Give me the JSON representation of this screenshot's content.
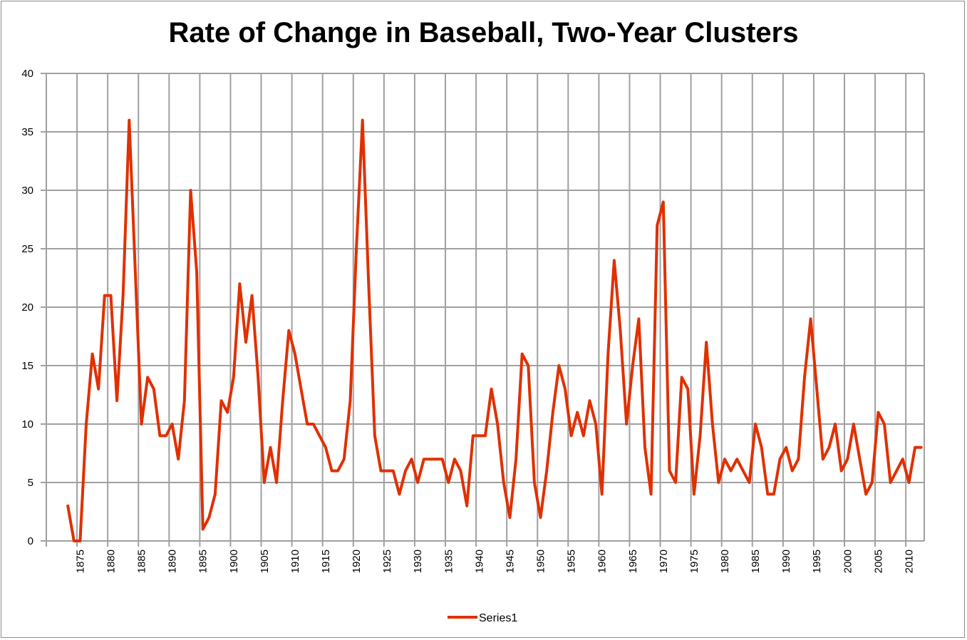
{
  "chart_data": {
    "type": "line",
    "title": "Rate of Change in Baseball, Two-Year Clusters",
    "xlabel": "",
    "ylabel": "",
    "ylim": [
      0,
      40
    ],
    "yticks": [
      0,
      5,
      10,
      15,
      20,
      25,
      30,
      35,
      40
    ],
    "xlim": [
      1870,
      2012
    ],
    "xticks": [
      1875,
      1880,
      1885,
      1890,
      1895,
      1900,
      1905,
      1910,
      1915,
      1920,
      1925,
      1930,
      1935,
      1940,
      1945,
      1950,
      1955,
      1960,
      1965,
      1970,
      1975,
      1980,
      1985,
      1990,
      1995,
      2000,
      2005,
      2010
    ],
    "grid": true,
    "legend_position": "bottom",
    "colors": {
      "series": "#e03000",
      "grid": "#a0a0a0"
    },
    "series": [
      {
        "name": "Series1",
        "x_start": 1873,
        "values": [
          3,
          0,
          0,
          10,
          16,
          13,
          21,
          21,
          12,
          21,
          36,
          23,
          10,
          14,
          13,
          9,
          9,
          10,
          7,
          12,
          30,
          23,
          1,
          2,
          4,
          12,
          11,
          14,
          22,
          17,
          21,
          14,
          5,
          8,
          5,
          12,
          18,
          16,
          13,
          10,
          10,
          9,
          8,
          6,
          6,
          7,
          12,
          25,
          36,
          22,
          9,
          6,
          6,
          6,
          4,
          6,
          7,
          5,
          7,
          7,
          7,
          7,
          5,
          7,
          6,
          3,
          9,
          9,
          9,
          13,
          10,
          5,
          2,
          7,
          16,
          15,
          5,
          2,
          6,
          11,
          15,
          13,
          9,
          11,
          9,
          12,
          10,
          4,
          16,
          24,
          18,
          10,
          15,
          19,
          8,
          4,
          27,
          29,
          6,
          5,
          14,
          13,
          4,
          9,
          17,
          10,
          5,
          7,
          6,
          7,
          6,
          5,
          10,
          8,
          4,
          4,
          7,
          8,
          6,
          7,
          14,
          19,
          13,
          7,
          8,
          10,
          6,
          7,
          10,
          7,
          4,
          5,
          11,
          10,
          5,
          6,
          7,
          5,
          8,
          8
        ]
      }
    ]
  }
}
